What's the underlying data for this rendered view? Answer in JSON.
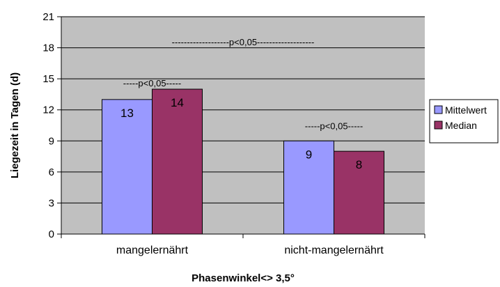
{
  "chart_data": {
    "type": "bar",
    "title": "",
    "xlabel": "Phasenwinkel<> 3,5°",
    "ylabel": "Liegezeit in Tagen (d)",
    "categories": [
      "mangelernährt",
      "nicht-mangelernährt"
    ],
    "series": [
      {
        "name": "Mittelwert",
        "values": [
          13,
          9
        ],
        "color": "#9999ff"
      },
      {
        "name": "Median",
        "values": [
          14,
          8
        ],
        "color": "#993366"
      }
    ],
    "data_labels": [
      [
        "13",
        "9"
      ],
      [
        "14",
        "8"
      ]
    ],
    "ylim": [
      0,
      21
    ],
    "yticks": [
      "0",
      "3",
      "6",
      "9",
      "12",
      "15",
      "18",
      "21"
    ],
    "grid": true,
    "plot_background": "#c0c0c0",
    "legend_position": "right",
    "annotations": {
      "overall": "-------------------p<0,05-------------------",
      "group1": "-----p<0,05-----",
      "group2": "-----p<0,05-----"
    }
  }
}
